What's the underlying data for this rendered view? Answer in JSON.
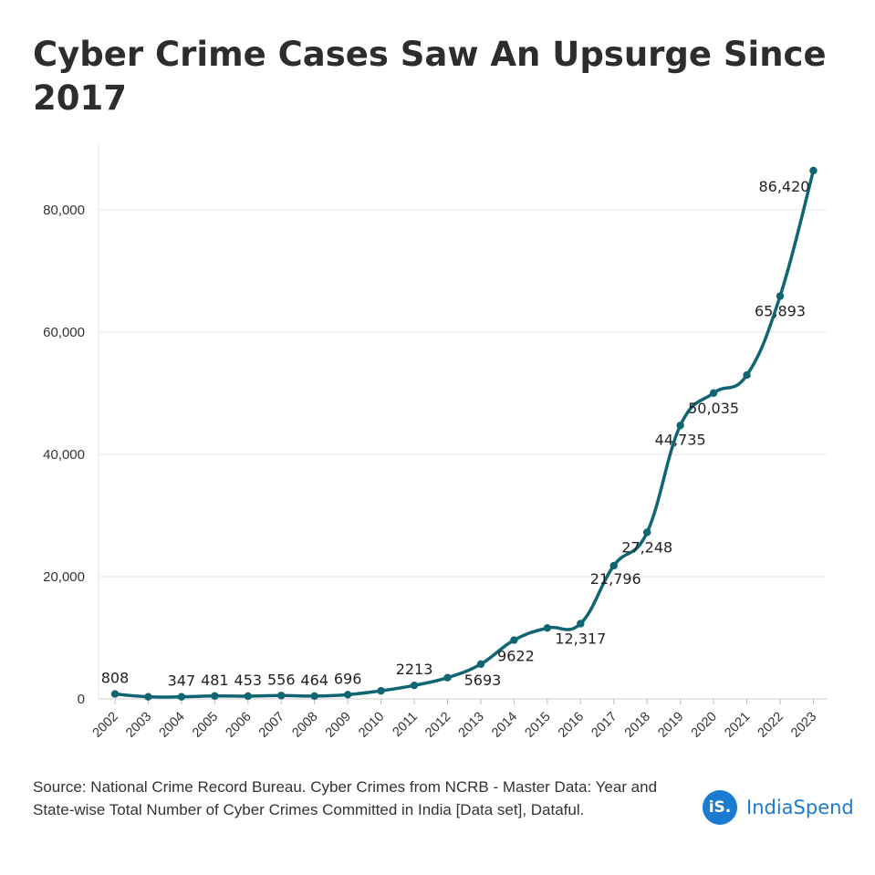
{
  "title": "Cyber Crime Cases Saw An Upsurge Since 2017",
  "source": "Source: National Crime Record Bureau. Cyber Crimes from NCRB - Master Data: Year and State-wise Total Number of Cyber Crimes Committed in India [Data set], Dataful.",
  "brand": {
    "logo": "iS.",
    "name": "IndiaSpend",
    "color": "#1b7bd1"
  },
  "chart_data": {
    "type": "line",
    "x": [
      "2002",
      "2003",
      "2004",
      "2005",
      "2006",
      "2007",
      "2008",
      "2009",
      "2010",
      "2011",
      "2012",
      "2013",
      "2014",
      "2015",
      "2016",
      "2017",
      "2018",
      "2019",
      "2020",
      "2021",
      "2022",
      "2023"
    ],
    "values": [
      808,
      347,
      347,
      481,
      453,
      556,
      464,
      696,
      1322,
      2213,
      3477,
      5693,
      9622,
      11592,
      12317,
      21796,
      27248,
      44735,
      50035,
      52974,
      65893,
      86420
    ],
    "data_labels": [
      "808",
      "",
      "347",
      "481",
      "453",
      "556",
      "464",
      "696",
      "",
      "2213",
      "",
      "5693",
      "9622",
      "",
      "12,317",
      "21,796",
      "27,248",
      "44,735",
      "50,035",
      "",
      "65,893",
      "86,420"
    ],
    "y_ticks": [
      0,
      20000,
      40000,
      60000,
      80000
    ],
    "y_tick_labels": [
      "0",
      "20,000",
      "40,000",
      "60,000",
      "80,000"
    ],
    "ylim": [
      0,
      90000
    ],
    "line_color": "#0f6572",
    "grid": true
  }
}
